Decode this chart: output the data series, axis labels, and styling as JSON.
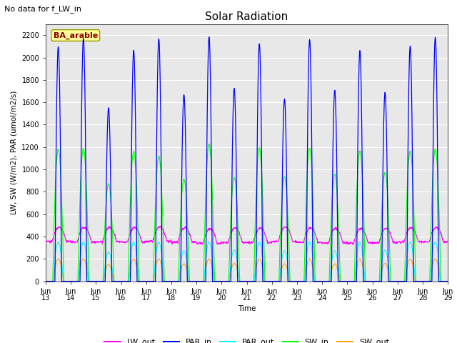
{
  "title": "Solar Radiation",
  "subtitle": "No data for f_LW_in",
  "xlabel": "Time",
  "ylabel": "LW, SW (W/m2), PAR (umol/m2/s)",
  "legend_labels": [
    "LW_out",
    "PAR_in",
    "PAR_out",
    "SW_in",
    "SW_out"
  ],
  "legend_colors": [
    "#ff00ff",
    "#0000ff",
    "#00ffff",
    "#00ff00",
    "#ffa500"
  ],
  "annotation_text": "BA_arable",
  "annotation_box_color": "#ffff99",
  "annotation_text_color": "#8b0000",
  "annotation_edge_color": "#999900",
  "xlim_start": 13.0,
  "xlim_end": 29.0,
  "ylim": [
    0,
    2300
  ],
  "yticks": [
    0,
    200,
    400,
    600,
    800,
    1000,
    1200,
    1400,
    1600,
    1800,
    2000,
    2200
  ],
  "xtick_positions": [
    13,
    14,
    15,
    16,
    17,
    18,
    19,
    20,
    21,
    22,
    23,
    24,
    25,
    26,
    27,
    28,
    29
  ],
  "xtick_labels": [
    "Jun\n13",
    "Jun\n14",
    "Jun\n15",
    "Jun\n16",
    "Jun\n17",
    "Jun\n18",
    "Jun\n19",
    "Jun\n20",
    "Jun\n21",
    "Jun\n22",
    "Jun\n23",
    "Jun\n24",
    "Jun\n25",
    "Jun\n26",
    "Jun\n27",
    "Jun\n28",
    "Jun\n29"
  ],
  "background_color": "#e8e8e8",
  "grid_color": "#ffffff",
  "n_days": 16,
  "start_day": 13,
  "pts_per_day": 96,
  "lw_out_base": 350,
  "lw_out_bump": 130,
  "par_in_peak": 2100,
  "sw_in_peak": 1150,
  "sw_out_peak": 200,
  "par_out_peak": 350,
  "title_fontsize": 11,
  "axis_label_fontsize": 7.5,
  "tick_fontsize": 7,
  "legend_fontsize": 8,
  "subtitle_fontsize": 8
}
